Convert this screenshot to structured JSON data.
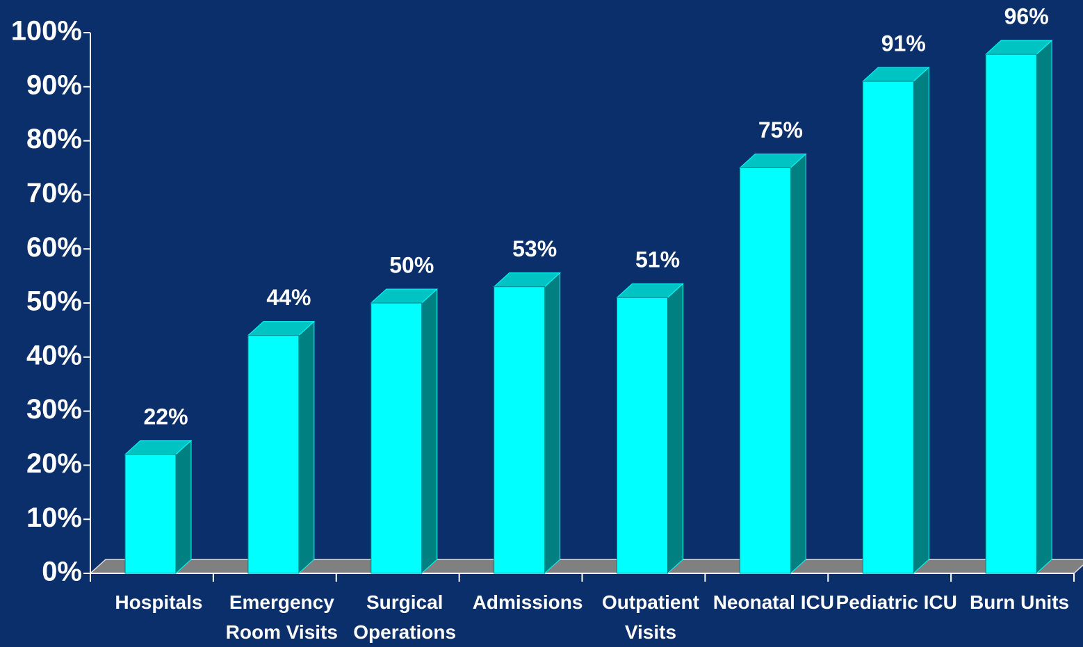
{
  "chart_data": {
    "type": "bar3d",
    "categories": [
      "Hospitals",
      "Emergency Room Visits",
      "Surgical Operations",
      "Admissions",
      "Outpatient Visits",
      "Neonatal ICU",
      "Pediatric ICU",
      "Burn Units"
    ],
    "values": [
      22,
      44,
      50,
      53,
      51,
      75,
      91,
      96
    ],
    "value_labels": [
      "22%",
      "44%",
      "50%",
      "53%",
      "51%",
      "75%",
      "91%",
      "96%"
    ],
    "color": "#00ffff",
    "ylim": [
      0,
      100
    ],
    "yticks": [
      {
        "value": 0,
        "label": "0%"
      },
      {
        "value": 10,
        "label": "10%"
      },
      {
        "value": 20,
        "label": "20%"
      },
      {
        "value": 30,
        "label": "30%"
      },
      {
        "value": 40,
        "label": "40%"
      },
      {
        "value": 50,
        "label": "50%"
      },
      {
        "value": 60,
        "label": "60%"
      },
      {
        "value": 70,
        "label": "70%"
      },
      {
        "value": 80,
        "label": "80%"
      },
      {
        "value": 90,
        "label": "90%"
      },
      {
        "value": 100,
        "label": "100%"
      }
    ]
  }
}
